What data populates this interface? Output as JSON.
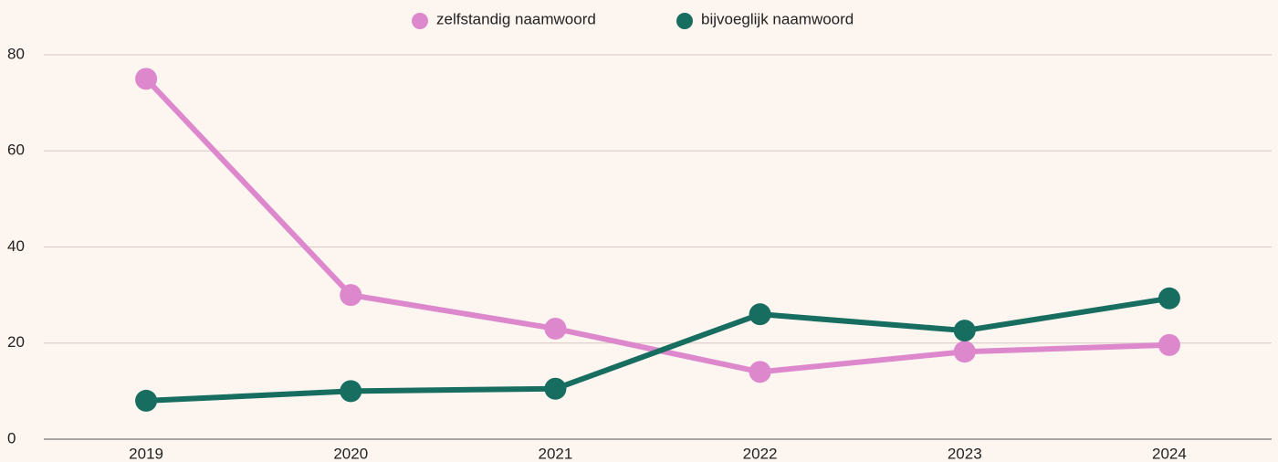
{
  "chart_data": {
    "type": "line",
    "x": [
      "2019",
      "2020",
      "2021",
      "2022",
      "2023",
      "2024"
    ],
    "series": [
      {
        "name": "zelfstandig naamwoord",
        "color": "#dd88cc",
        "values": [
          75,
          30,
          23,
          14,
          18.2,
          19.6
        ]
      },
      {
        "name": "bijvoeglijk naamwoord",
        "color": "#176d60",
        "values": [
          8,
          10,
          10.5,
          26,
          22.6,
          29.3
        ]
      }
    ],
    "ylim": [
      0,
      80
    ],
    "yticks": [
      0,
      20,
      40,
      60,
      80
    ],
    "grid": true,
    "legend": "top"
  }
}
